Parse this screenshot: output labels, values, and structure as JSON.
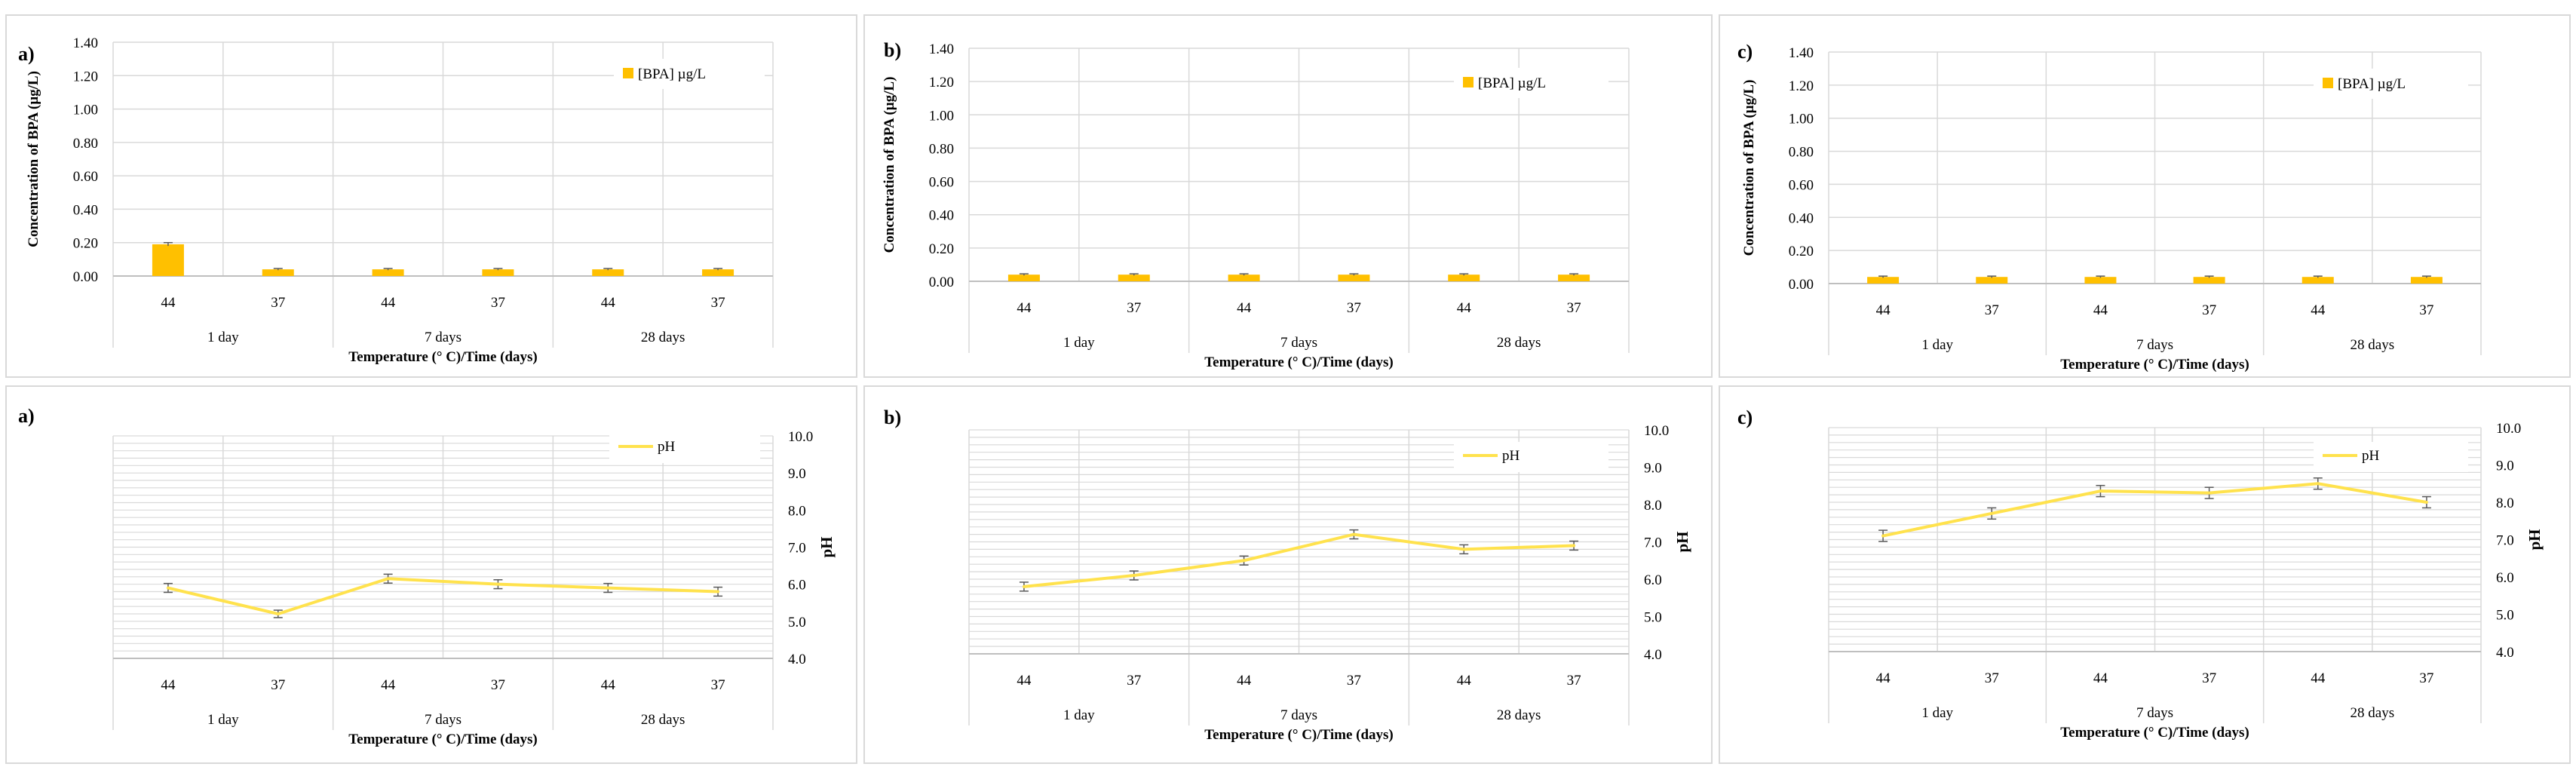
{
  "colors": {
    "bar": "#FFC000",
    "line": "#FFE24D",
    "error": "#595959",
    "grid": "#d9d9d9"
  },
  "chart_data": [
    {
      "panel": "a",
      "type": "bar",
      "label": "a)",
      "categories": [
        "44",
        "37",
        "44",
        "37",
        "44",
        "37"
      ],
      "groups": [
        "1 day",
        "7 days",
        "28 days"
      ],
      "values": [
        0.19,
        0.04,
        0.04,
        0.04,
        0.04,
        0.04
      ],
      "errors": [
        0.01,
        0.005,
        0.005,
        0.005,
        0.005,
        0.005
      ],
      "ylim": [
        0,
        1.4
      ],
      "ticks": [
        "0.00",
        "0.20",
        "0.40",
        "0.60",
        "0.80",
        "1.00",
        "1.20",
        "1.40"
      ],
      "series": [
        {
          "name": "[BPA] µg/L"
        }
      ],
      "xlabel": "Temperature (° C)/Time (days)",
      "ylabel": "Concentration of BPA (µg/L)",
      "legend": "top-right",
      "grid": true
    },
    {
      "panel": "b",
      "type": "bar",
      "label": "b)",
      "categories": [
        "44",
        "37",
        "44",
        "37",
        "44",
        "37"
      ],
      "groups": [
        "1 day",
        "7 days",
        "28 days"
      ],
      "values": [
        0.04,
        0.04,
        0.04,
        0.04,
        0.04,
        0.04
      ],
      "errors": [
        0.005,
        0.005,
        0.005,
        0.005,
        0.005,
        0.005
      ],
      "ylim": [
        0,
        1.4
      ],
      "ticks": [
        "0.00",
        "0.20",
        "0.40",
        "0.60",
        "0.80",
        "1.00",
        "1.20",
        "1.40"
      ],
      "series": [
        {
          "name": "[BPA] µg/L"
        }
      ],
      "xlabel": "Temperature (° C)/Time (days)",
      "ylabel": "Concentration of BPA (µg/L)",
      "legend": "top-right",
      "grid": true
    },
    {
      "panel": "c",
      "type": "bar",
      "label": "c)",
      "categories": [
        "44",
        "37",
        "44",
        "37",
        "44",
        "37"
      ],
      "groups": [
        "1 day",
        "7 days",
        "28 days"
      ],
      "values": [
        0.04,
        0.04,
        0.04,
        0.04,
        0.04,
        0.04
      ],
      "errors": [
        0.005,
        0.005,
        0.005,
        0.005,
        0.005,
        0.005
      ],
      "ylim": [
        0,
        1.4
      ],
      "ticks": [
        "0.00",
        "0.20",
        "0.40",
        "0.60",
        "0.80",
        "1.00",
        "1.20",
        "1.40"
      ],
      "series": [
        {
          "name": "[BPA] µg/L"
        }
      ],
      "xlabel": "Temperature (° C)/Time (days)",
      "ylabel": "Concentration of BPA (µg/L)",
      "legend": "top-right",
      "grid": true
    },
    {
      "panel": "a",
      "type": "line",
      "label": "a)",
      "categories": [
        "44",
        "37",
        "44",
        "37",
        "44",
        "37"
      ],
      "groups": [
        "1 day",
        "7 days",
        "28 days"
      ],
      "values": [
        5.9,
        5.2,
        6.15,
        6.0,
        5.9,
        5.8
      ],
      "errors": [
        0.12,
        0.1,
        0.12,
        0.12,
        0.12,
        0.12
      ],
      "ylim": [
        4,
        10
      ],
      "ticks": [
        "4.0",
        "5.0",
        "6.0",
        "7.0",
        "8.0",
        "9.0",
        "10.0"
      ],
      "series": [
        {
          "name": "pH"
        }
      ],
      "xlabel": "Temperature (° C)/Time (days)",
      "ylabel": "pH",
      "legend": "top-right",
      "grid": true
    },
    {
      "panel": "b",
      "type": "line",
      "label": "b)",
      "categories": [
        "44",
        "37",
        "44",
        "37",
        "44",
        "37"
      ],
      "groups": [
        "1 day",
        "7 days",
        "28 days"
      ],
      "values": [
        5.8,
        6.1,
        6.5,
        7.2,
        6.8,
        6.9
      ],
      "errors": [
        0.12,
        0.12,
        0.12,
        0.12,
        0.12,
        0.12
      ],
      "ylim": [
        4,
        10
      ],
      "ticks": [
        "4.0",
        "5.0",
        "6.0",
        "7.0",
        "8.0",
        "9.0",
        "10.0"
      ],
      "series": [
        {
          "name": "pH"
        }
      ],
      "xlabel": "Temperature (° C)/Time (days)",
      "ylabel": "pH",
      "legend": "top-right",
      "grid": true
    },
    {
      "panel": "c",
      "type": "line",
      "label": "c)",
      "categories": [
        "44",
        "37",
        "44",
        "37",
        "44",
        "37"
      ],
      "groups": [
        "1 day",
        "7 days",
        "28 days"
      ],
      "values": [
        7.1,
        7.7,
        8.3,
        8.25,
        8.5,
        8.0
      ],
      "errors": [
        0.15,
        0.15,
        0.15,
        0.15,
        0.15,
        0.15
      ],
      "ylim": [
        4,
        10
      ],
      "ticks": [
        "4.0",
        "5.0",
        "6.0",
        "7.0",
        "8.0",
        "9.0",
        "10.0"
      ],
      "series": [
        {
          "name": "pH"
        }
      ],
      "xlabel": "Temperature (° C)/Time (days)",
      "ylabel": "pH",
      "legend": "top-right",
      "grid": true
    }
  ]
}
